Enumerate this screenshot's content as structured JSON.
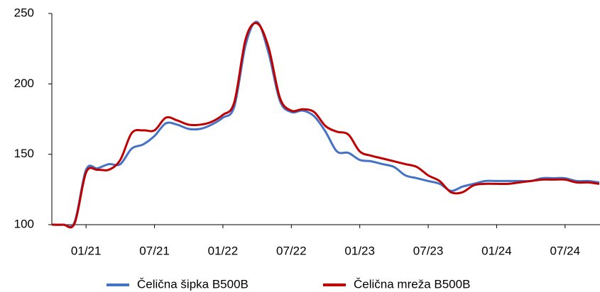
{
  "chart_data": {
    "type": "line",
    "categories": [
      null,
      null,
      null,
      "01/21",
      null,
      null,
      null,
      null,
      null,
      "07/21",
      null,
      null,
      null,
      null,
      null,
      "01/22",
      null,
      null,
      null,
      null,
      null,
      "07/22",
      null,
      null,
      null,
      null,
      null,
      "01/23",
      null,
      null,
      null,
      null,
      null,
      "07/23",
      null,
      null,
      null,
      null,
      null,
      "01/24",
      null,
      null,
      null,
      null,
      null,
      "07/24",
      null,
      null,
      null
    ],
    "series": [
      {
        "name": "Čelična šipka B500B",
        "color": "#4472c4",
        "values": [
          100,
          100,
          102,
          139,
          140,
          143,
          143,
          154,
          157,
          163,
          172,
          171,
          168,
          168,
          171,
          176,
          184,
          228,
          244,
          222,
          188,
          180,
          181,
          177,
          166,
          152,
          151,
          146,
          145,
          143,
          141,
          135,
          133,
          131,
          129,
          124,
          127,
          129,
          131,
          131,
          131,
          131,
          131,
          133,
          133,
          133,
          131,
          131,
          130
        ]
      },
      {
        "name": "Čelična mreža B500B",
        "color": "#c00000",
        "values": [
          100,
          100,
          101,
          137,
          139,
          139,
          146,
          165,
          167,
          167,
          176,
          174,
          171,
          171,
          173,
          178,
          187,
          232,
          243,
          226,
          190,
          181,
          182,
          180,
          170,
          166,
          164,
          152,
          149,
          147,
          145,
          143,
          141,
          135,
          131,
          123,
          123,
          128,
          129,
          129,
          129,
          130,
          131,
          132,
          132,
          132,
          130,
          130,
          129
        ]
      }
    ],
    "ylim": [
      100,
      250
    ],
    "yticks": [
      100,
      150,
      200,
      250
    ],
    "legend": "bottom"
  }
}
